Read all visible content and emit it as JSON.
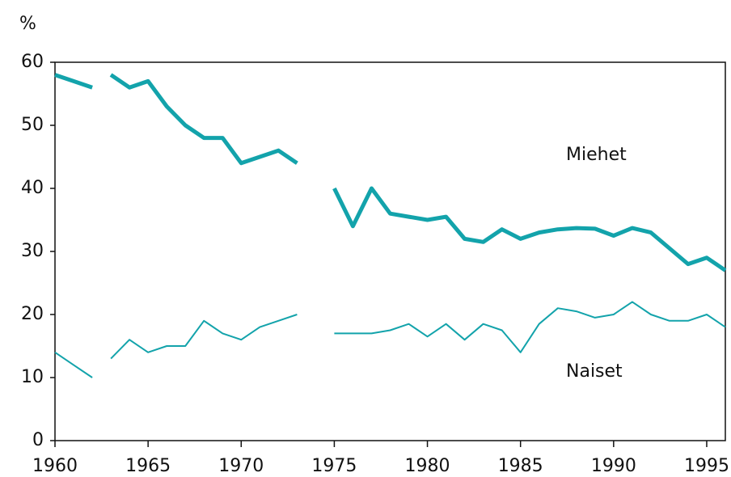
{
  "chart_data": {
    "type": "line",
    "y_label": "%",
    "x": [
      1960,
      1961,
      1962,
      null,
      1963,
      1964,
      1965,
      1966,
      1967,
      1968,
      1969,
      1970,
      1971,
      1972,
      1973,
      1974,
      1975,
      1976,
      1977,
      1978,
      1979,
      1980,
      1981,
      1982,
      1983,
      1984,
      1985,
      1986,
      1987,
      1988,
      1989,
      1990,
      1991,
      1992,
      1993,
      1994,
      1995,
      1996
    ],
    "series": [
      {
        "name": "Miehet",
        "color": "#13a3ab",
        "width": 5,
        "values": [
          58,
          57,
          56,
          null,
          58,
          56,
          57,
          53,
          50,
          48,
          48,
          44,
          45,
          46,
          44,
          null,
          40,
          34,
          40,
          36,
          35.5,
          35,
          35.5,
          32,
          31.5,
          33.5,
          32,
          33,
          33.5,
          33.7,
          33.6,
          32.5,
          33.7,
          33,
          30.5,
          28,
          29,
          27
        ]
      },
      {
        "name": "Naiset",
        "color": "#13a3ab",
        "width": 2,
        "values": [
          14,
          12,
          10,
          null,
          13,
          16,
          14,
          15,
          15,
          19,
          17,
          16,
          18,
          19,
          20,
          null,
          17,
          17,
          17,
          17.5,
          18.5,
          16.5,
          18.5,
          16,
          18.5,
          17.5,
          14,
          18.5,
          21,
          20.5,
          19.5,
          20,
          22,
          20,
          19,
          19,
          20,
          18
        ]
      }
    ],
    "xlim": [
      1960,
      1996
    ],
    "xticks": [
      1960,
      1965,
      1970,
      1975,
      1980,
      1985,
      1990,
      1995
    ],
    "ylim": [
      0,
      60
    ],
    "yticks": [
      0,
      10,
      20,
      30,
      40,
      50,
      60
    ]
  }
}
